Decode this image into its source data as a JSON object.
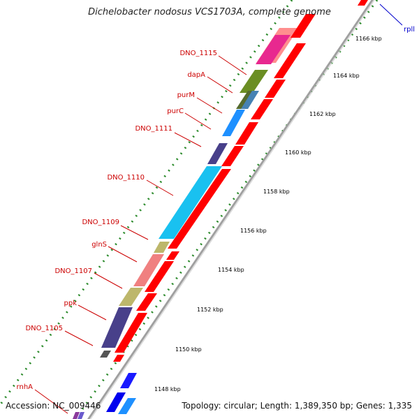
{
  "title": "Dichelobacter nodosus VCS1703A, complete genome",
  "accession": "Accession: NC_009446",
  "summary": "Topology: circular; Length: 1,389,350 bp; Genes: 1,335",
  "colors": {
    "gene_label": "#cc0000",
    "rpll_label": "#0000cc",
    "cds_arrow": "#ff0000",
    "backbone": "#a0a0a0",
    "tick_dots": "#2a8a2a"
  },
  "gene_labels": [
    {
      "id": "dno1115",
      "text": "DNO_1115"
    },
    {
      "id": "dapA",
      "text": "dapA"
    },
    {
      "id": "purM",
      "text": "purM"
    },
    {
      "id": "purC",
      "text": "purC"
    },
    {
      "id": "dno1111",
      "text": "DNO_1111"
    },
    {
      "id": "dno1110",
      "text": "DNO_1110"
    },
    {
      "id": "dno1109",
      "text": "DNO_1109"
    },
    {
      "id": "glnS",
      "text": "glnS"
    },
    {
      "id": "dno1107",
      "text": "DNO_1107"
    },
    {
      "id": "ppk",
      "text": "ppk"
    },
    {
      "id": "dno1105",
      "text": "DNO_1105"
    },
    {
      "id": "rnhA",
      "text": "rnhA"
    },
    {
      "id": "rpll",
      "text": "rpll"
    }
  ],
  "kbp_ticks": [
    {
      "id": "k1166",
      "text": "1166 kbp"
    },
    {
      "id": "k1164",
      "text": "1164 kbp"
    },
    {
      "id": "k1162",
      "text": "1162 kbp"
    },
    {
      "id": "k1160",
      "text": "1160 kbp"
    },
    {
      "id": "k1158",
      "text": "1158 kbp"
    },
    {
      "id": "k1156",
      "text": "1156 kbp"
    },
    {
      "id": "k1154",
      "text": "1154 kbp"
    },
    {
      "id": "k1152",
      "text": "1152 kbp"
    },
    {
      "id": "k1150",
      "text": "1150 kbp"
    },
    {
      "id": "k1148",
      "text": "1148 kbp"
    }
  ]
}
